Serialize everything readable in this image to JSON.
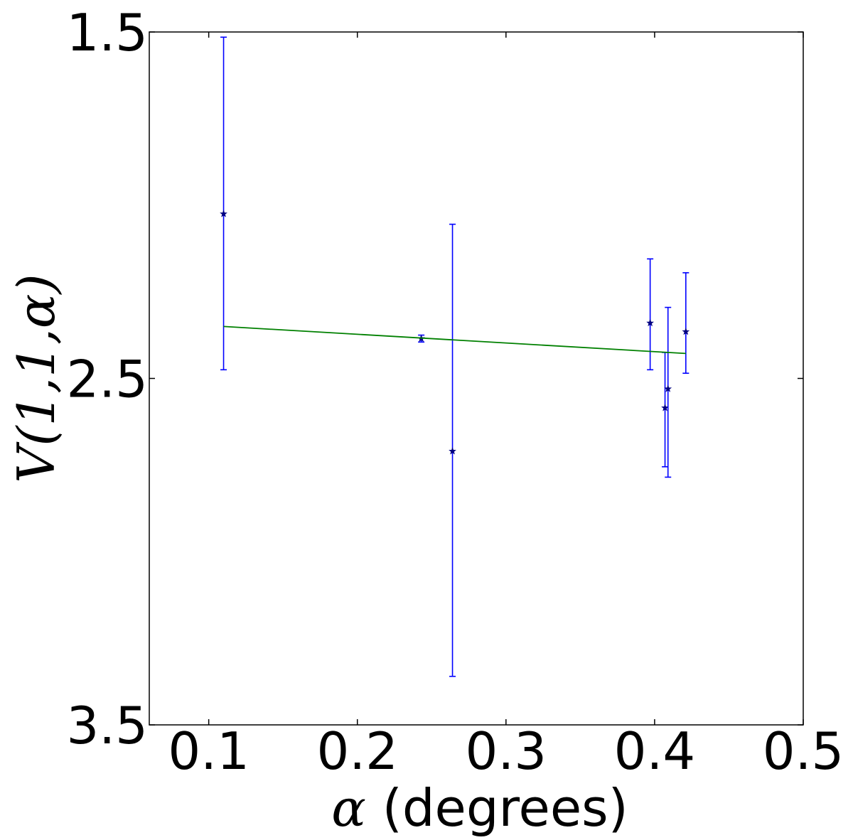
{
  "chart_data": {
    "type": "scatter",
    "xlabel_symbol": "α",
    "xlabel_text": " (degrees)",
    "ylabel": "V(1,1,α)",
    "xlim": [
      0.06,
      0.5
    ],
    "ylim": [
      1.5,
      3.5
    ],
    "y_inverted": true,
    "x_ticks": [
      "0.1",
      "0.2",
      "0.3",
      "0.4",
      "0.5"
    ],
    "y_ticks": [
      "1.5",
      "2.5",
      "3.5"
    ],
    "grid": false,
    "legend": "none",
    "colors": {
      "errorbar": "#0000ff",
      "marker": "#000080",
      "fit_line": "#008000",
      "axes": "#000000"
    },
    "series": [
      {
        "kind": "errorbar",
        "marker": "star",
        "points": [
          {
            "x": 0.11,
            "y": 2.025,
            "ylo": 1.515,
            "yhi": 2.475
          },
          {
            "x": 0.243,
            "y": 2.385,
            "ylo": 2.375,
            "yhi": 2.395
          },
          {
            "x": 0.264,
            "y": 2.71,
            "ylo": 2.055,
            "yhi": 3.36
          },
          {
            "x": 0.397,
            "y": 2.34,
            "ylo": 2.155,
            "yhi": 2.475
          },
          {
            "x": 0.407,
            "y": 2.585,
            "ylo": 2.425,
            "yhi": 2.755
          },
          {
            "x": 0.409,
            "y": 2.53,
            "ylo": 2.295,
            "yhi": 2.785
          },
          {
            "x": 0.421,
            "y": 2.365,
            "ylo": 2.195,
            "yhi": 2.485
          }
        ]
      },
      {
        "kind": "line",
        "points": [
          {
            "x": 0.11,
            "y": 2.35
          },
          {
            "x": 0.421,
            "y": 2.428
          }
        ]
      }
    ]
  }
}
